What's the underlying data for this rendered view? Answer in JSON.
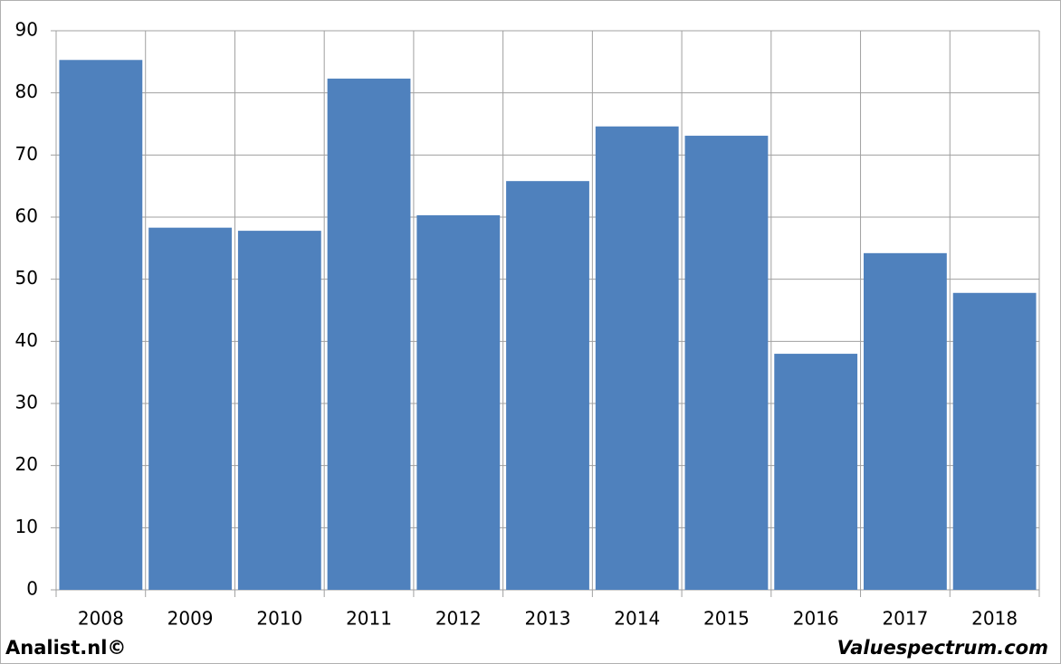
{
  "chart_data": {
    "type": "bar",
    "categories": [
      "2008",
      "2009",
      "2010",
      "2011",
      "2012",
      "2013",
      "2014",
      "2015",
      "2016",
      "2017",
      "2018"
    ],
    "values": [
      85.3,
      58.3,
      57.8,
      82.3,
      60.3,
      65.8,
      74.6,
      73.1,
      38.0,
      54.2,
      47.8
    ],
    "color": "#4f81bd",
    "ylim": [
      0,
      90
    ],
    "yticks": [
      0,
      10,
      20,
      30,
      40,
      50,
      60,
      70,
      80,
      90
    ],
    "grid": true,
    "footer_left": "Analist.nl©",
    "footer_right": "Valuespectrum.com"
  }
}
